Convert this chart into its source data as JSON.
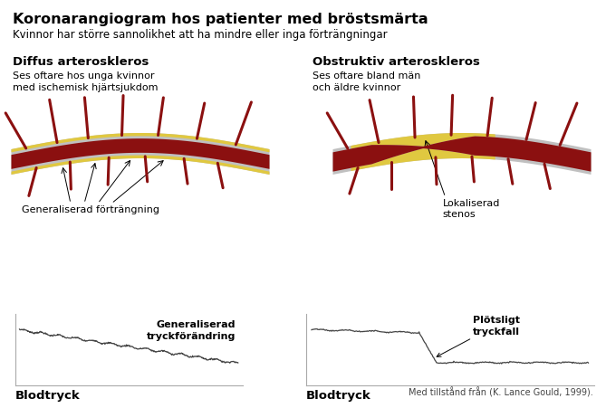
{
  "title": "Koronarangiogram hos patienter med bröstsmärta",
  "subtitle": "Kvinnor har större sannolikhet att ha mindre eller inga förträngningar",
  "left_heading": "Diffus arteroskleros",
  "left_subtext": "Ses oftare hos unga kvinnor\nmed ischemisk hjärtsjukdom",
  "right_heading": "Obstruktiv arteroskleros",
  "right_subtext": "Ses oftare bland män\noch äldre kvinnor",
  "left_arrow_label": "Generaliserad förträngning",
  "right_arrow_label": "Lokaliserad\nstenos",
  "left_plot_label": "Generaliserad\ntryckförändring",
  "right_plot_label": "Plötsligt\ntryckfall",
  "left_axis_label": "Blodtryck",
  "right_axis_label": "Blodtryck",
  "footnote": "Med tillstånd från (K. Lance Gould, 1999).",
  "bg_color": "#ffffff",
  "artery_dark": "#8B1010",
  "artery_gray": "#c0c0c0",
  "artery_plaque": "#e0c840",
  "branch_color": "#8B1010",
  "line_color": "#666666",
  "spine_color": "#aaaaaa"
}
